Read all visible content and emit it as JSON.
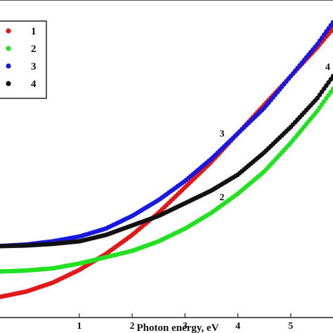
{
  "chart_data": {
    "type": "scatter",
    "xlabel": "Photon energy, eV",
    "ylabel": "",
    "xlim": [
      -0.5,
      5.8
    ],
    "ylim": [
      0,
      1
    ],
    "x_ticks": [
      "1",
      "2",
      "3",
      "4",
      "5"
    ],
    "grid": false,
    "legend_position": "top-left",
    "series": [
      {
        "name": "1",
        "color": "#e01818",
        "x": [
          -0.5,
          0.0,
          0.5,
          1.0,
          1.5,
          2.0,
          2.5,
          3.0,
          3.5,
          4.0,
          4.5,
          5.0,
          5.5,
          5.8
        ],
        "y": [
          0.065,
          0.082,
          0.11,
          0.15,
          0.2,
          0.26,
          0.33,
          0.41,
          0.49,
          0.58,
          0.67,
          0.76,
          0.85,
          0.91
        ]
      },
      {
        "name": "2",
        "color": "#22e022",
        "x": [
          -0.5,
          0.0,
          0.5,
          1.0,
          1.5,
          2.0,
          2.5,
          3.0,
          3.5,
          4.0,
          4.5,
          5.0,
          5.5,
          5.8
        ],
        "y": [
          0.145,
          0.148,
          0.155,
          0.17,
          0.19,
          0.21,
          0.24,
          0.28,
          0.33,
          0.39,
          0.46,
          0.55,
          0.65,
          0.72
        ]
      },
      {
        "name": "3",
        "color": "#1818e0",
        "x": [
          -0.5,
          0.0,
          0.5,
          1.0,
          1.5,
          2.0,
          2.5,
          3.0,
          3.5,
          4.0,
          4.5,
          5.0,
          5.5,
          5.8
        ],
        "y": [
          0.225,
          0.23,
          0.24,
          0.255,
          0.28,
          0.32,
          0.37,
          0.43,
          0.5,
          0.58,
          0.66,
          0.76,
          0.86,
          0.93
        ]
      },
      {
        "name": "4",
        "color": "#111111",
        "x": [
          -0.5,
          0.0,
          0.5,
          1.0,
          1.5,
          2.0,
          2.5,
          3.0,
          3.5,
          4.0,
          4.5,
          5.0,
          5.5,
          5.8
        ],
        "y": [
          0.225,
          0.227,
          0.232,
          0.24,
          0.26,
          0.29,
          0.32,
          0.36,
          0.4,
          0.45,
          0.52,
          0.6,
          0.69,
          0.76
        ]
      }
    ],
    "annotations": [
      {
        "text": "3",
        "x": 3.7,
        "y": 0.57
      },
      {
        "text": "2",
        "x": 3.7,
        "y": 0.37
      },
      {
        "text": "4",
        "x": 5.7,
        "y": 0.78
      }
    ]
  }
}
